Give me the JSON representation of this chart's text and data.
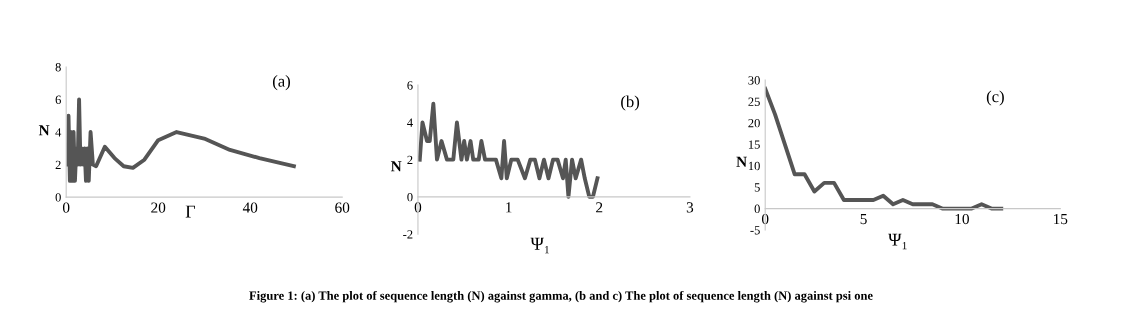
{
  "chart_data": [
    {
      "type": "line",
      "xlabel": "Γ",
      "ylabel": "N",
      "annotations": [
        "(a)",
        "Figure 1: (a) The plot of sequence length (N) against gamma, (b and c) The plot of sequence length (N) against psi one"
      ],
      "xlim": [
        0,
        60
      ],
      "xticks": [
        0,
        20,
        40,
        60
      ],
      "ylim": [
        0,
        8
      ],
      "yticks": [
        0,
        2,
        4,
        6,
        8
      ],
      "grid": false,
      "legend": false,
      "series": [
        {
          "color": "#555555",
          "x": [
            0.3,
            0.5,
            0.8,
            1.0,
            1.3,
            1.6,
            1.9,
            2.2,
            2.5,
            2.8,
            3.1,
            3.4,
            3.7,
            4.0,
            4.3,
            4.6,
            4.9,
            5.3,
            5.8,
            6.5,
            8.4,
            10.5,
            12.5,
            14.5,
            17,
            20,
            24,
            30,
            35.6,
            42,
            49.5
          ],
          "values": [
            2,
            5,
            1,
            4,
            1,
            4,
            1,
            3,
            2,
            6,
            2,
            3,
            2,
            3,
            1,
            3,
            1,
            4,
            2,
            1.9,
            3.1,
            2.4,
            1.9,
            1.8,
            2.3,
            3.5,
            4,
            3.6,
            2.9,
            2.4,
            1.9
          ]
        }
      ]
    },
    {
      "type": "line",
      "xlabel": "Ψ₁",
      "ylabel": "N",
      "annotations": [
        "(b)"
      ],
      "xlim": [
        0,
        3
      ],
      "xticks": [
        0,
        1,
        2,
        3
      ],
      "ylim": [
        -2,
        6
      ],
      "yticks": [
        -2,
        0,
        2,
        4,
        6
      ],
      "grid": false,
      "legend": false,
      "series": [
        {
          "color": "#555555",
          "x": [
            0.02,
            0.05,
            0.1,
            0.13,
            0.17,
            0.21,
            0.26,
            0.32,
            0.39,
            0.43,
            0.48,
            0.51,
            0.54,
            0.58,
            0.61,
            0.67,
            0.7,
            0.74,
            0.86,
            0.92,
            0.95,
            0.98,
            1.03,
            1.1,
            1.18,
            1.24,
            1.29,
            1.34,
            1.39,
            1.44,
            1.49,
            1.54,
            1.6,
            1.63,
            1.66,
            1.7,
            1.74,
            1.8,
            1.84,
            1.89,
            1.93,
            1.98
          ],
          "values": [
            2,
            4,
            3,
            3,
            5,
            2,
            3,
            2,
            2,
            4,
            2,
            3,
            2,
            3,
            2,
            2,
            3,
            2,
            2,
            1,
            3,
            1,
            2,
            2,
            1,
            2,
            2,
            1,
            2,
            1,
            2,
            2,
            1,
            2,
            0,
            2,
            1,
            2,
            1,
            0,
            0,
            1
          ]
        }
      ]
    },
    {
      "type": "line",
      "xlabel": "Ψ₁",
      "ylabel": "N",
      "annotations": [
        "(c)"
      ],
      "xlim": [
        0,
        15
      ],
      "xticks": [
        0,
        5,
        10,
        15
      ],
      "ylim": [
        -5,
        30
      ],
      "yticks": [
        -5,
        0,
        5,
        10,
        15,
        20,
        25,
        30
      ],
      "grid": false,
      "legend": false,
      "series": [
        {
          "color": "#555555",
          "x": [
            0,
            0.5,
            1,
            1.5,
            2,
            2.5,
            3,
            3.5,
            4,
            4.5,
            5,
            5.5,
            6,
            6.5,
            7,
            7.5,
            8,
            8.5,
            9,
            9.5,
            10,
            10.5,
            11,
            11.5,
            12
          ],
          "values": [
            28,
            22,
            15,
            8,
            8,
            4,
            6,
            6,
            2,
            2,
            2,
            2,
            3,
            1,
            2,
            1,
            1,
            1,
            0,
            0,
            0,
            0,
            1,
            0,
            0
          ]
        }
      ]
    }
  ]
}
